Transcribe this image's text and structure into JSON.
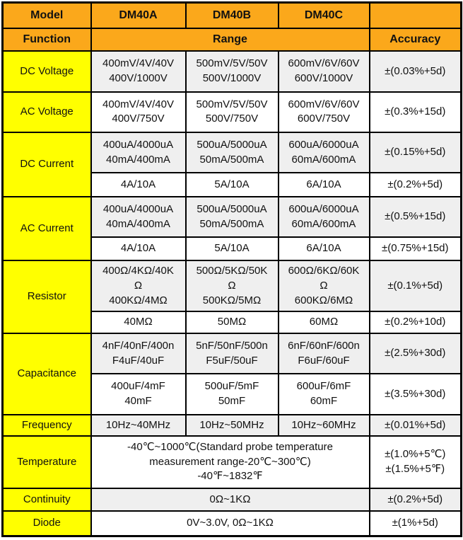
{
  "colors": {
    "header_bg": "#FBA81B",
    "function_bg": "#FFFF00",
    "shaded_row_bg": "#EFEFEF",
    "plain_row_bg": "#FFFFFF",
    "border": "#000000",
    "text": "#111111"
  },
  "table": {
    "rows": [
      {
        "cells": [
          {
            "lines": [
              "Model"
            ],
            "style": "hdr",
            "name": "header-model-label"
          },
          {
            "lines": [
              "DM40A"
            ],
            "style": "hdr",
            "name": "header-model-dm40a"
          },
          {
            "lines": [
              "DM40B"
            ],
            "style": "hdr",
            "name": "header-model-dm40b"
          },
          {
            "lines": [
              "DM40C"
            ],
            "style": "hdr",
            "name": "header-model-dm40c"
          },
          {
            "lines": [],
            "style": "hdr",
            "name": "header-blank-cell"
          }
        ]
      },
      {
        "cells": [
          {
            "lines": [
              "Function"
            ],
            "style": "hdr",
            "name": "header-function-label"
          },
          {
            "lines": [
              "Range"
            ],
            "style": "hdr",
            "colspan": 3,
            "name": "header-range-label"
          },
          {
            "lines": [
              "Accuracy"
            ],
            "style": "hdr",
            "name": "header-accuracy-label"
          }
        ]
      },
      {
        "cells": [
          {
            "lines": [
              "DC Voltage"
            ],
            "style": "fn",
            "name": "function-cell-dc-voltage"
          },
          {
            "lines": [
              "400mV/4V/40V",
              "400V/1000V"
            ],
            "style": "g",
            "name": "range-cell"
          },
          {
            "lines": [
              "500mV/5V/50V",
              "500V/1000V"
            ],
            "style": "g",
            "name": "range-cell"
          },
          {
            "lines": [
              "600mV/6V/60V",
              "600V/1000V"
            ],
            "style": "g",
            "name": "range-cell"
          },
          {
            "lines": [
              "±(0.03%+5d)"
            ],
            "style": "g",
            "name": "accuracy-cell"
          }
        ]
      },
      {
        "cells": [
          {
            "lines": [
              "AC Voltage"
            ],
            "style": "fn",
            "name": "function-cell-ac-voltage"
          },
          {
            "lines": [
              "400mV/4V/40V",
              "400V/750V"
            ],
            "style": "w",
            "name": "range-cell"
          },
          {
            "lines": [
              "500mV/5V/50V",
              "500V/750V"
            ],
            "style": "w",
            "name": "range-cell"
          },
          {
            "lines": [
              "600mV/6V/60V",
              "600V/750V"
            ],
            "style": "w",
            "name": "range-cell"
          },
          {
            "lines": [
              "±(0.3%+15d)"
            ],
            "style": "w",
            "name": "accuracy-cell"
          }
        ]
      },
      {
        "cells": [
          {
            "lines": [
              "DC Current"
            ],
            "style": "fn",
            "rowspan": 2,
            "name": "function-cell-dc-current"
          },
          {
            "lines": [
              "400uA/4000uA",
              "40mA/400mA"
            ],
            "style": "g",
            "name": "range-cell"
          },
          {
            "lines": [
              "500uA/5000uA",
              "50mA/500mA"
            ],
            "style": "g",
            "name": "range-cell"
          },
          {
            "lines": [
              "600uA/6000uA",
              "60mA/600mA"
            ],
            "style": "g",
            "name": "range-cell"
          },
          {
            "lines": [
              "±(0.15%+5d)"
            ],
            "style": "g",
            "name": "accuracy-cell"
          }
        ]
      },
      {
        "cells": [
          {
            "lines": [
              "4A/10A"
            ],
            "style": "w",
            "name": "range-cell"
          },
          {
            "lines": [
              "5A/10A"
            ],
            "style": "w",
            "name": "range-cell"
          },
          {
            "lines": [
              "6A/10A"
            ],
            "style": "w",
            "name": "range-cell"
          },
          {
            "lines": [
              "±(0.2%+5d)"
            ],
            "style": "w",
            "name": "accuracy-cell"
          }
        ]
      },
      {
        "cells": [
          {
            "lines": [
              "AC Current"
            ],
            "style": "fn",
            "rowspan": 2,
            "name": "function-cell-ac-current"
          },
          {
            "lines": [
              "400uA/4000uA",
              "40mA/400mA"
            ],
            "style": "g",
            "name": "range-cell"
          },
          {
            "lines": [
              "500uA/5000uA",
              "50mA/500mA"
            ],
            "style": "g",
            "name": "range-cell"
          },
          {
            "lines": [
              "600uA/6000uA",
              "60mA/600mA"
            ],
            "style": "g",
            "name": "range-cell"
          },
          {
            "lines": [
              "±(0.5%+15d)"
            ],
            "style": "g",
            "name": "accuracy-cell"
          }
        ]
      },
      {
        "cells": [
          {
            "lines": [
              "4A/10A"
            ],
            "style": "w",
            "name": "range-cell"
          },
          {
            "lines": [
              "5A/10A"
            ],
            "style": "w",
            "name": "range-cell"
          },
          {
            "lines": [
              "6A/10A"
            ],
            "style": "w",
            "name": "range-cell"
          },
          {
            "lines": [
              "±(0.75%+15d)"
            ],
            "style": "w",
            "name": "accuracy-cell"
          }
        ]
      },
      {
        "cells": [
          {
            "lines": [
              "Resistor"
            ],
            "style": "fn",
            "rowspan": 2,
            "name": "function-cell-resistor"
          },
          {
            "lines": [
              "400Ω/4KΩ/40K",
              "Ω",
              "400KΩ/4MΩ"
            ],
            "style": "g",
            "name": "range-cell"
          },
          {
            "lines": [
              "500Ω/5KΩ/50K",
              "Ω",
              "500KΩ/5MΩ"
            ],
            "style": "g",
            "name": "range-cell"
          },
          {
            "lines": [
              "600Ω/6KΩ/60K",
              "Ω",
              "600KΩ/6MΩ"
            ],
            "style": "g",
            "name": "range-cell"
          },
          {
            "lines": [
              "±(0.1%+5d)"
            ],
            "style": "g",
            "name": "accuracy-cell"
          }
        ]
      },
      {
        "cells": [
          {
            "lines": [
              "40MΩ"
            ],
            "style": "w",
            "name": "range-cell"
          },
          {
            "lines": [
              "50MΩ"
            ],
            "style": "w",
            "name": "range-cell"
          },
          {
            "lines": [
              "60MΩ"
            ],
            "style": "w",
            "name": "range-cell"
          },
          {
            "lines": [
              "±(0.2%+10d)"
            ],
            "style": "w",
            "name": "accuracy-cell"
          }
        ]
      },
      {
        "cells": [
          {
            "lines": [
              "Capacitance"
            ],
            "style": "fn",
            "rowspan": 2,
            "name": "function-cell-capacitance"
          },
          {
            "lines": [
              "4nF/40nF/400n",
              "F4uF/40uF"
            ],
            "style": "g",
            "name": "range-cell"
          },
          {
            "lines": [
              "5nF/50nF/500n",
              "F5uF/50uF"
            ],
            "style": "g",
            "name": "range-cell"
          },
          {
            "lines": [
              "6nF/60nF/600n",
              "F6uF/60uF"
            ],
            "style": "g",
            "name": "range-cell"
          },
          {
            "lines": [
              "±(2.5%+30d)"
            ],
            "style": "g",
            "name": "accuracy-cell"
          }
        ]
      },
      {
        "cells": [
          {
            "lines": [
              "400uF/4mF",
              "40mF"
            ],
            "style": "w",
            "name": "range-cell"
          },
          {
            "lines": [
              "500uF/5mF",
              "50mF"
            ],
            "style": "w",
            "name": "range-cell"
          },
          {
            "lines": [
              "600uF/6mF",
              "60mF"
            ],
            "style": "w",
            "name": "range-cell"
          },
          {
            "lines": [
              "±(3.5%+30d)"
            ],
            "style": "w",
            "name": "accuracy-cell"
          }
        ]
      },
      {
        "cells": [
          {
            "lines": [
              "Frequency"
            ],
            "style": "fn",
            "name": "function-cell-frequency"
          },
          {
            "lines": [
              "10Hz~40MHz"
            ],
            "style": "g",
            "name": "range-cell"
          },
          {
            "lines": [
              "10Hz~50MHz"
            ],
            "style": "g",
            "name": "range-cell"
          },
          {
            "lines": [
              "10Hz~60MHz"
            ],
            "style": "g",
            "name": "range-cell"
          },
          {
            "lines": [
              "±(0.01%+5d)"
            ],
            "style": "g",
            "name": "accuracy-cell"
          }
        ]
      },
      {
        "cells": [
          {
            "lines": [
              "Temperature"
            ],
            "style": "fn",
            "name": "function-cell-temperature"
          },
          {
            "lines": [
              "-40℃~1000℃(Standard probe temperature",
              "measurement range-20℃~300℃)",
              "-40℉~1832℉"
            ],
            "style": "w",
            "colspan": 3,
            "name": "range-cell"
          },
          {
            "lines": [
              "±(1.0%+5℃)",
              "±(1.5%+5℉)"
            ],
            "style": "w",
            "name": "accuracy-cell"
          }
        ]
      },
      {
        "cells": [
          {
            "lines": [
              "Continuity"
            ],
            "style": "fn",
            "name": "function-cell-continuity"
          },
          {
            "lines": [
              "0Ω~1KΩ"
            ],
            "style": "g",
            "colspan": 3,
            "name": "range-cell"
          },
          {
            "lines": [
              "±(0.2%+5d)"
            ],
            "style": "g",
            "name": "accuracy-cell"
          }
        ]
      },
      {
        "cells": [
          {
            "lines": [
              "Diode"
            ],
            "style": "fn",
            "name": "function-cell-diode"
          },
          {
            "lines": [
              "0V~3.0V, 0Ω~1KΩ"
            ],
            "style": "w",
            "colspan": 3,
            "name": "range-cell"
          },
          {
            "lines": [
              "±(1%+5d)"
            ],
            "style": "w",
            "name": "accuracy-cell"
          }
        ]
      }
    ]
  }
}
